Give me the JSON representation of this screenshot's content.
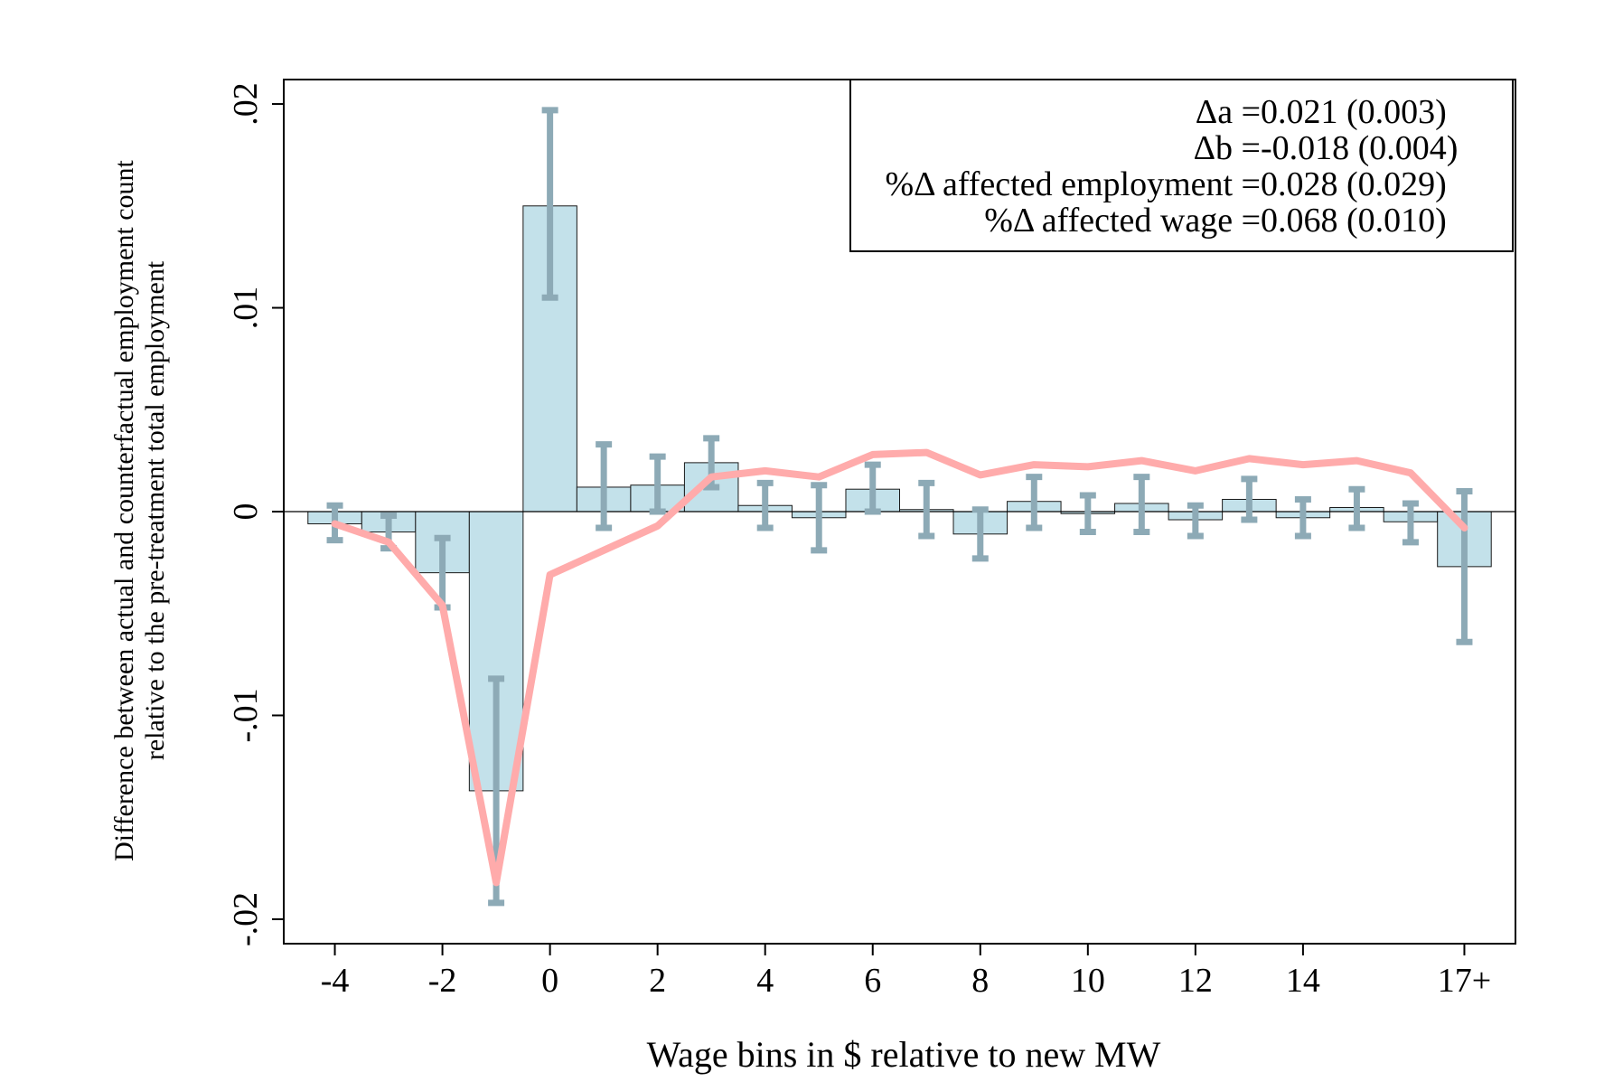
{
  "chart_data": {
    "type": "bar",
    "xlabel": "Wage bins in $ relative to new MW",
    "ylabel_line1": "Difference between actual and counterfactual employment count",
    "ylabel_line2": "relative to the pre-treatment total employment",
    "ylim": [
      -0.0212,
      0.0212
    ],
    "xlim": [
      -4.95,
      17.95
    ],
    "grid": false,
    "y_ticks": [
      {
        "value": -0.02,
        "label": "-.02"
      },
      {
        "value": -0.01,
        "label": "-.01"
      },
      {
        "value": 0,
        "label": "0"
      },
      {
        "value": 0.01,
        "label": ".01"
      },
      {
        "value": 0.02,
        "label": ".02"
      }
    ],
    "x_ticks": [
      {
        "value": -4,
        "label": "-4"
      },
      {
        "value": -2,
        "label": "-2"
      },
      {
        "value": 0,
        "label": "0"
      },
      {
        "value": 2,
        "label": "2"
      },
      {
        "value": 4,
        "label": "4"
      },
      {
        "value": 6,
        "label": "6"
      },
      {
        "value": 8,
        "label": "8"
      },
      {
        "value": 10,
        "label": "10"
      },
      {
        "value": 12,
        "label": "12"
      },
      {
        "value": 14,
        "label": "14"
      },
      {
        "value": 17,
        "label": "17+"
      }
    ],
    "bins": [
      -4,
      -3,
      -2,
      -1,
      0,
      1,
      2,
      3,
      4,
      5,
      6,
      7,
      8,
      9,
      10,
      11,
      12,
      13,
      14,
      15,
      16,
      17
    ],
    "bars": [
      -0.0006,
      -0.001,
      -0.003,
      -0.0137,
      0.015,
      0.0012,
      0.0013,
      0.0024,
      0.0003,
      -0.0003,
      0.0011,
      0.0001,
      -0.0011,
      0.0005,
      -0.0001,
      0.0004,
      -0.0004,
      0.0006,
      -0.0003,
      0.0002,
      -0.0005,
      -0.0027
    ],
    "ci_low": [
      -0.0014,
      -0.0018,
      -0.0047,
      -0.0192,
      0.0105,
      -0.0008,
      0.0,
      0.0012,
      -0.0008,
      -0.0019,
      0.0,
      -0.0012,
      -0.0023,
      -0.0008,
      -0.001,
      -0.001,
      -0.0012,
      -0.0004,
      -0.0012,
      -0.0008,
      -0.0015,
      -0.0064
    ],
    "ci_high": [
      0.0003,
      -0.0002,
      -0.0013,
      -0.0082,
      0.0197,
      0.0033,
      0.0027,
      0.0036,
      0.0014,
      0.0013,
      0.0023,
      0.0014,
      0.0001,
      0.0017,
      0.0008,
      0.0017,
      0.0003,
      0.0016,
      0.0006,
      0.0011,
      0.0004,
      0.001
    ],
    "series": [
      {
        "x": [
          -4,
          -3,
          -2,
          -1,
          0,
          1,
          2,
          3,
          4,
          5,
          6,
          7,
          8,
          9,
          10,
          11,
          12,
          13,
          14,
          15,
          16,
          17
        ],
        "values": [
          -0.0006,
          -0.0015,
          -0.0046,
          -0.0182,
          -0.0031,
          -0.0019,
          -0.0007,
          0.0017,
          0.002,
          0.0017,
          0.0028,
          0.0029,
          0.0018,
          0.0023,
          0.0022,
          0.0025,
          0.002,
          0.0026,
          0.0023,
          0.0025,
          0.0019,
          -0.0008
        ]
      }
    ],
    "colors": {
      "bar_fill": "#c3e1ea",
      "bar_edge": "#1a1a1a",
      "errorbar": "#8daab6",
      "line": "#ffabab",
      "axis": "#000000"
    },
    "legend_position": "top-right",
    "annotations": [
      {
        "label": "Δa =",
        "value": " 0.021 (0.003)"
      },
      {
        "label": "Δb =",
        "value": "-0.018 (0.004)"
      },
      {
        "label": "%Δ affected employment =",
        "value": " 0.028 (0.029)"
      },
      {
        "label": "%Δ affected wage =",
        "value": " 0.068 (0.010)"
      }
    ]
  }
}
